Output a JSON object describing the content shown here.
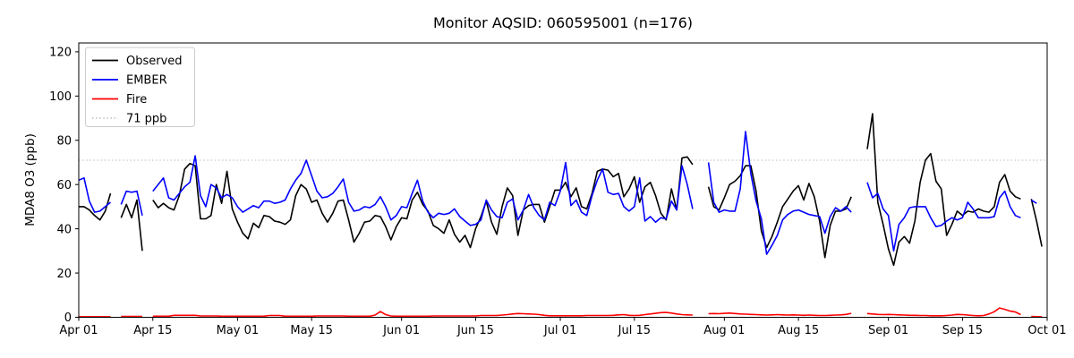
{
  "title": "Monitor AQSID: 060595001 (n=176)",
  "y_axis_label": "MDA8 O3 (ppb)",
  "legend": {
    "position": "upper-left",
    "entries": [
      {
        "label": "Observed",
        "color": "#000000",
        "style": "solid"
      },
      {
        "label": "EMBER",
        "color": "#0000ff",
        "style": "solid"
      },
      {
        "label": "Fire",
        "color": "#ff0000",
        "style": "solid"
      },
      {
        "label": "71 ppb",
        "color": "#c8c8c8",
        "style": "dotted"
      }
    ]
  },
  "chart_data": {
    "type": "line",
    "x_mode": "daily",
    "n_days": 183,
    "x_start_label": "Apr 01",
    "x_end_label": "Oct 01",
    "x_ticks": [
      {
        "day": 0,
        "label": "Apr 01"
      },
      {
        "day": 14,
        "label": "Apr 15"
      },
      {
        "day": 30,
        "label": "May 01"
      },
      {
        "day": 44,
        "label": "May 15"
      },
      {
        "day": 61,
        "label": "Jun 01"
      },
      {
        "day": 75,
        "label": "Jun 15"
      },
      {
        "day": 91,
        "label": "Jul 01"
      },
      {
        "day": 105,
        "label": "Jul 15"
      },
      {
        "day": 122,
        "label": "Aug 01"
      },
      {
        "day": 136,
        "label": "Aug 15"
      },
      {
        "day": 153,
        "label": "Sep 01"
      },
      {
        "day": 167,
        "label": "Sep 15"
      },
      {
        "day": 183,
        "label": "Oct 01"
      }
    ],
    "y_ticks": [
      0,
      20,
      40,
      60,
      80,
      100,
      120
    ],
    "ylim": [
      0,
      124
    ],
    "ref_line": {
      "value": 71,
      "label": "71 ppb",
      "color": "#c8c8c8",
      "style": "dotted"
    },
    "grid": false,
    "series": [
      {
        "name": "Observed",
        "color": "#000000",
        "values": [
          50,
          50,
          48.5,
          46,
          44,
          48,
          56,
          null,
          45,
          51,
          45,
          53,
          30,
          null,
          53,
          49.5,
          51.5,
          49.5,
          48.5,
          55,
          67,
          69.5,
          68.5,
          44.5,
          44.5,
          46,
          60,
          51.5,
          66,
          49,
          43,
          38,
          35.5,
          42.5,
          40.5,
          46,
          45.5,
          43.5,
          43,
          42,
          44,
          55,
          60,
          58,
          52,
          53,
          47,
          43,
          47,
          52.5,
          53,
          44,
          34,
          38,
          43,
          43.5,
          46,
          45.5,
          41,
          35,
          41,
          45,
          44.5,
          53,
          56.5,
          51,
          48,
          41.5,
          40,
          38,
          44,
          37.5,
          34,
          37,
          31.5,
          40,
          45.5,
          52.5,
          43,
          37.5,
          50,
          58.5,
          55,
          37,
          48.5,
          50.5,
          51,
          51,
          43,
          50,
          57.5,
          57.5,
          61,
          54.5,
          58.5,
          50,
          49,
          56,
          66,
          67,
          66.5,
          63.5,
          65,
          54.5,
          58,
          63.5,
          52,
          59,
          61,
          55,
          47,
          44,
          58,
          48.5,
          72,
          72.5,
          69,
          null,
          null,
          59,
          50,
          48.5,
          54,
          60,
          61.5,
          64,
          68.5,
          68.5,
          57,
          39,
          31.5,
          36.5,
          43,
          50,
          53.5,
          57,
          59.5,
          53,
          60.5,
          54.5,
          43.5,
          27,
          41.5,
          48,
          48,
          49,
          54.5,
          null,
          null,
          76,
          92,
          52,
          42,
          31,
          23.5,
          34,
          36.5,
          33.5,
          43.5,
          61,
          71,
          74,
          61.5,
          58,
          37,
          42,
          48,
          46,
          48,
          47.5,
          49,
          48,
          47.5,
          50,
          61,
          64.5,
          57,
          54.5,
          53.5,
          null,
          53.5,
          43.5,
          32
        ]
      },
      {
        "name": "EMBER",
        "color": "#0000ff",
        "values": [
          62,
          63,
          52.5,
          47.5,
          48,
          50,
          52,
          null,
          51,
          57,
          56.5,
          57,
          46,
          null,
          57,
          60,
          63,
          54,
          53,
          56,
          59,
          61,
          73,
          55,
          50,
          60,
          58.5,
          54,
          55.5,
          54,
          50,
          47.5,
          49,
          50.5,
          49.5,
          52.5,
          52.5,
          51.5,
          52,
          53,
          58,
          62,
          65,
          71,
          64,
          57,
          54,
          54.5,
          56,
          59,
          62.5,
          52,
          48,
          48.5,
          50,
          49.5,
          51,
          54.5,
          50,
          44,
          46,
          50,
          49.5,
          56,
          62,
          52.5,
          47.5,
          45,
          47,
          46.5,
          47,
          49,
          45.5,
          43.5,
          41.5,
          42,
          44,
          53,
          48.5,
          45.5,
          45,
          52,
          53.5,
          44,
          48.5,
          55.5,
          49.5,
          46,
          44,
          52,
          50.5,
          57,
          70,
          50.5,
          53,
          47.5,
          46,
          55,
          62,
          67,
          56.5,
          55.5,
          56,
          50,
          48,
          50,
          63,
          43.5,
          45.5,
          43,
          45,
          44.5,
          52.5,
          48.5,
          68.5,
          60,
          49,
          null,
          null,
          70,
          52,
          47.5,
          48.5,
          48,
          48,
          58,
          84,
          65,
          52.5,
          44.5,
          28.5,
          32.5,
          37,
          44,
          46.5,
          48,
          48.5,
          47.5,
          46.5,
          46,
          45.5,
          38,
          45.5,
          49.5,
          48,
          50,
          47.5,
          null,
          null,
          61,
          54,
          56,
          49,
          46,
          30,
          42,
          45,
          49.5,
          50,
          50,
          50,
          45,
          41,
          41.5,
          43.5,
          45,
          44,
          45,
          52,
          49,
          45,
          45,
          45,
          45.5,
          54,
          57,
          50,
          46,
          45,
          null,
          53,
          51.5,
          null
        ]
      },
      {
        "name": "Fire",
        "color": "#ff0000",
        "values": [
          0.3,
          0.3,
          0.3,
          0.3,
          0.3,
          0.3,
          0.3,
          null,
          0.4,
          0.4,
          0.4,
          0.4,
          0.4,
          null,
          0.5,
          0.5,
          0.5,
          0.5,
          0.9,
          0.9,
          0.9,
          0.9,
          0.9,
          0.6,
          0.6,
          0.6,
          0.6,
          0.5,
          0.5,
          0.5,
          0.5,
          0.5,
          0.5,
          0.5,
          0.5,
          0.5,
          0.8,
          0.8,
          0.8,
          0.5,
          0.5,
          0.5,
          0.5,
          0.5,
          0.5,
          0.6,
          0.6,
          0.6,
          0.6,
          0.6,
          0.6,
          0.5,
          0.5,
          0.5,
          0.5,
          0.5,
          1.0,
          2.6,
          1.2,
          0.6,
          0.5,
          0.5,
          0.5,
          0.5,
          0.5,
          0.5,
          0.5,
          0.6,
          0.6,
          0.6,
          0.6,
          0.6,
          0.6,
          0.6,
          0.6,
          0.6,
          0.8,
          0.8,
          0.8,
          0.8,
          1.0,
          1.2,
          1.5,
          1.7,
          1.6,
          1.5,
          1.4,
          1.2,
          0.9,
          0.7,
          0.7,
          0.7,
          0.7,
          0.7,
          0.7,
          0.7,
          0.8,
          0.8,
          0.8,
          0.8,
          0.8,
          0.9,
          1.1,
          1.2,
          0.9,
          0.8,
          0.9,
          1.2,
          1.5,
          1.8,
          2.1,
          2.2,
          1.9,
          1.5,
          1.2,
          1.1,
          1.0,
          null,
          null,
          1.6,
          1.7,
          1.6,
          1.8,
          1.9,
          1.7,
          1.5,
          1.4,
          1.3,
          1.2,
          1.1,
          1.0,
          1.1,
          1.2,
          1.1,
          1.0,
          1.1,
          1.0,
          0.9,
          1.0,
          0.9,
          0.8,
          0.8,
          0.9,
          1.0,
          1.1,
          1.3,
          1.8,
          null,
          null,
          1.7,
          1.5,
          1.3,
          1.2,
          1.3,
          1.2,
          1.1,
          1.0,
          0.9,
          0.9,
          0.8,
          0.8,
          0.7,
          0.7,
          0.7,
          0.8,
          1.0,
          1.3,
          1.2,
          1.0,
          0.8,
          0.7,
          0.8,
          1.5,
          2.5,
          4.2,
          3.6,
          2.8,
          2.4,
          1.2,
          null,
          0.4,
          0.3,
          0.3
        ]
      }
    ]
  }
}
